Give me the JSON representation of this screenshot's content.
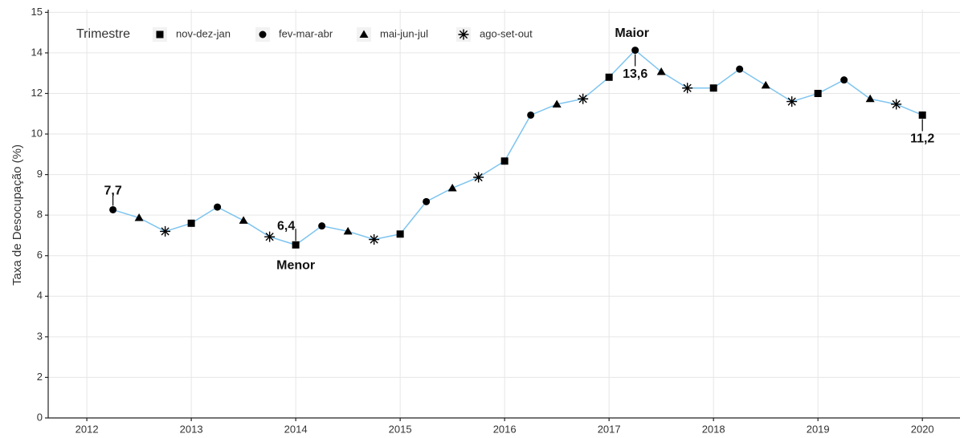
{
  "chart_data": {
    "type": "line",
    "y_label": "Taxa de Desocupação (%)",
    "legend": {
      "title": "Trimestre",
      "entries": [
        "nov-dez-jan",
        "fev-mar-abr",
        "mai-jun-jul",
        "ago-set-out"
      ]
    },
    "line_color": "#7ec4ef",
    "marker_color": "#000000",
    "x": [
      2012.25,
      2012.5,
      2012.75,
      2013,
      2013.25,
      2013.5,
      2013.75,
      2014,
      2014.25,
      2014.5,
      2014.75,
      2015,
      2015.25,
      2015.5,
      2015.75,
      2016,
      2016.25,
      2016.5,
      2016.75,
      2017,
      2017.25,
      2017.5,
      2017.75,
      2018,
      2018.25,
      2018.5,
      2018.75,
      2019,
      2019.25,
      2019.5,
      2019.75,
      2020
    ],
    "values": [
      7.7,
      7.4,
      6.9,
      7.2,
      7.8,
      7.3,
      6.7,
      6.4,
      7.1,
      6.9,
      6.6,
      6.8,
      8.0,
      8.5,
      8.9,
      9.5,
      11.2,
      11.6,
      11.8,
      12.6,
      13.6,
      12.8,
      12.2,
      12.2,
      12.9,
      12.3,
      11.7,
      12.0,
      12.5,
      11.8,
      11.6,
      11.2
    ],
    "value_labels": [
      "7,7",
      null,
      null,
      null,
      null,
      null,
      null,
      "6,4",
      null,
      null,
      null,
      null,
      null,
      null,
      null,
      null,
      null,
      null,
      null,
      null,
      "13,6",
      null,
      null,
      null,
      null,
      null,
      null,
      null,
      null,
      null,
      null,
      "11,2"
    ],
    "annotations": {
      "min": "Menor",
      "max": "Maior"
    },
    "xlim": [
      2011.63,
      2020.36
    ],
    "xticks": [
      2012,
      2013,
      2014,
      2015,
      2016,
      2017,
      2018,
      2019,
      2020
    ],
    "ylim": [
      0,
      15.1
    ],
    "yticks": [
      0,
      {
        "value": 1.5,
        "label": "2"
      },
      3,
      {
        "value": 4.5,
        "label": "4"
      },
      6,
      {
        "value": 7.5,
        "label": "8"
      },
      9,
      {
        "value": 10.5,
        "label": "10"
      },
      12,
      {
        "value": 13.5,
        "label": "14"
      },
      15
    ],
    "grid": true
  }
}
